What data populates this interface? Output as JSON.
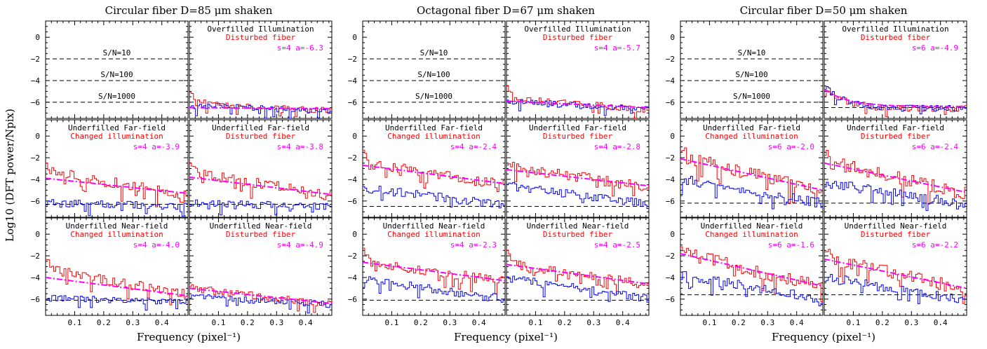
{
  "figure": {
    "ylabel": "Log10 (DFT power/Npix)",
    "xlabel": "Frequency (pixel⁻¹)",
    "colors": {
      "red": "#ff0000",
      "blue": "#0000ff",
      "fit": "#ff00ff",
      "ref": "#000000"
    }
  },
  "chart_data": [
    {
      "type": "line",
      "group_title": "Circular fiber D=85 μm shaken",
      "xlabel": "Frequency (pixel⁻¹)",
      "xlim": [
        0,
        0.49
      ],
      "ylim": [
        -7.5,
        1.5
      ],
      "xticks": [
        0.1,
        0.2,
        0.3,
        0.4
      ],
      "yticks": [
        0,
        -2,
        -4,
        -6
      ],
      "grid": false,
      "panels": [
        {
          "row": 0,
          "col": 0,
          "labels": [],
          "reference_lines": [
            {
              "y": -2,
              "label": "S/N=10"
            },
            {
              "y": -4,
              "label": "S/N=100"
            },
            {
              "y": -6,
              "label": "S/N=1000"
            }
          ]
        },
        {
          "row": 0,
          "col": 1,
          "labels": [
            "Overfilled Illumination",
            "Disturbed fiber"
          ],
          "fit": {
            "label": "s=4 a=-6.3",
            "y_start": -6.5,
            "y_end": -6.6
          },
          "series": [
            {
              "color": "red",
              "start": -6.0,
              "end": -6.8,
              "noise": 0.3
            },
            {
              "color": "blue",
              "start": -6.3,
              "end": -6.8,
              "noise": 0.3
            }
          ],
          "baseline": null
        },
        {
          "row": 1,
          "col": 0,
          "labels": [
            "Underfilled Far-field",
            "Changed illumination"
          ],
          "fit": {
            "label": "s=4 a=-3.9",
            "y_start": -3.9,
            "y_end": -5.3
          },
          "series": [
            {
              "color": "red",
              "start": -3.3,
              "end": -5.4,
              "noise": 0.5
            },
            {
              "color": "blue",
              "start": -6.2,
              "end": -6.5,
              "noise": 0.35
            }
          ],
          "baseline": -6.3
        },
        {
          "row": 1,
          "col": 1,
          "labels": [
            "Underfilled Far-field",
            "Disturbed fiber"
          ],
          "fit": {
            "label": "s=4 a=-3.8",
            "y_start": -3.8,
            "y_end": -5.4
          },
          "series": [
            {
              "color": "red",
              "start": -3.3,
              "end": -5.5,
              "noise": 0.5
            },
            {
              "color": "blue",
              "start": -6.2,
              "end": -6.5,
              "noise": 0.35
            }
          ],
          "baseline": -6.3
        },
        {
          "row": 2,
          "col": 0,
          "labels": [
            "Underfilled Near-field",
            "Changed illumination"
          ],
          "fit": {
            "label": "s=4 a=-4.0",
            "y_start": -4.0,
            "y_end": -5.7
          },
          "series": [
            {
              "color": "red",
              "start": -3.2,
              "end": -5.6,
              "noise": 0.45
            },
            {
              "color": "blue",
              "start": -5.9,
              "end": -6.3,
              "noise": 0.3
            }
          ],
          "baseline": -6.1
        },
        {
          "row": 2,
          "col": 1,
          "labels": [
            "Underfilled Near-field",
            "Disturbed fiber"
          ],
          "fit": {
            "label": "s=4 a=-4.9",
            "y_start": -5.0,
            "y_end": -6.4
          },
          "series": [
            {
              "color": "red",
              "start": -5.0,
              "end": -6.5,
              "noise": 0.35
            },
            {
              "color": "blue",
              "start": -5.8,
              "end": -6.5,
              "noise": 0.3
            }
          ],
          "baseline": null
        }
      ]
    },
    {
      "type": "line",
      "group_title": "Octagonal fiber D=67 μm shaken",
      "xlabel": "Frequency (pixel⁻¹)",
      "xlim": [
        0,
        0.49
      ],
      "ylim": [
        -7.5,
        1.5
      ],
      "xticks": [
        0.1,
        0.2,
        0.3,
        0.4
      ],
      "yticks": [
        0,
        -2,
        -4,
        -6
      ],
      "grid": false,
      "panels": [
        {
          "row": 0,
          "col": 0,
          "labels": [],
          "reference_lines": [
            {
              "y": -2,
              "label": "S/N=10"
            },
            {
              "y": -4,
              "label": "S/N=100"
            },
            {
              "y": -6,
              "label": "S/N=1000"
            }
          ]
        },
        {
          "row": 0,
          "col": 1,
          "labels": [
            "Overfilled Illumination",
            "Disturbed fiber"
          ],
          "fit": {
            "label": "s=4 a=-5.7",
            "y_start": -5.9,
            "y_end": -6.5
          },
          "series": [
            {
              "color": "red",
              "start": -5.6,
              "end": -6.7,
              "noise": 0.3
            },
            {
              "color": "blue",
              "start": -5.9,
              "end": -6.7,
              "noise": 0.3
            }
          ],
          "baseline": null
        },
        {
          "row": 1,
          "col": 0,
          "labels": [
            "Underfilled Far-field",
            "Changed illumination"
          ],
          "fit": {
            "label": "s=4 a=-2.4",
            "y_start": -2.7,
            "y_end": -4.4
          },
          "series": [
            {
              "color": "red",
              "start": -2.5,
              "end": -4.5,
              "noise": 0.5
            },
            {
              "color": "blue",
              "start": -4.8,
              "end": -6.4,
              "noise": 0.4
            }
          ],
          "baseline": -6.5
        },
        {
          "row": 1,
          "col": 1,
          "labels": [
            "Underfilled Far-field",
            "Disturbed fiber"
          ],
          "fit": {
            "label": "s=4 a=-2.8",
            "y_start": -3.1,
            "y_end": -4.6
          },
          "series": [
            {
              "color": "red",
              "start": -2.8,
              "end": -4.7,
              "noise": 0.5
            },
            {
              "color": "blue",
              "start": -4.6,
              "end": -6.3,
              "noise": 0.4
            }
          ],
          "baseline": -6.5
        },
        {
          "row": 2,
          "col": 0,
          "labels": [
            "Underfilled Near-field",
            "Changed illumination"
          ],
          "fit": {
            "label": "s=4 a=-2.3",
            "y_start": -2.6,
            "y_end": -4.3
          },
          "series": [
            {
              "color": "red",
              "start": -2.5,
              "end": -4.4,
              "noise": 0.45
            },
            {
              "color": "blue",
              "start": -4.2,
              "end": -6.0,
              "noise": 0.4
            }
          ],
          "baseline": -6.1
        },
        {
          "row": 2,
          "col": 1,
          "labels": [
            "Underfilled Near-field",
            "Disturbed fiber"
          ],
          "fit": {
            "label": "s=4 a=-2.5",
            "y_start": -2.8,
            "y_end": -4.6
          },
          "series": [
            {
              "color": "red",
              "start": -2.7,
              "end": -4.7,
              "noise": 0.45
            },
            {
              "color": "blue",
              "start": -4.1,
              "end": -5.9,
              "noise": 0.4
            }
          ],
          "baseline": -6.1
        }
      ]
    },
    {
      "type": "line",
      "group_title": "Circular fiber D=50 μm shaken",
      "xlabel": "Frequency (pixel⁻¹)",
      "xlim": [
        0,
        0.49
      ],
      "ylim": [
        -7.5,
        1.5
      ],
      "xticks": [
        0.1,
        0.2,
        0.3,
        0.4
      ],
      "yticks": [
        0,
        -2,
        -4,
        -6
      ],
      "grid": false,
      "panels": [
        {
          "row": 0,
          "col": 0,
          "labels": [],
          "reference_lines": [
            {
              "y": -2,
              "label": "S/N=10"
            },
            {
              "y": -4,
              "label": "S/N=100"
            },
            {
              "y": -6,
              "label": "S/N=1000"
            }
          ]
        },
        {
          "row": 0,
          "col": 1,
          "labels": [
            "Overfilled Illumination",
            "Disturbed fiber"
          ],
          "fit": {
            "label": "s=6 a=-4.9",
            "y_start": -4.8,
            "y_end": -6.4,
            "curved": true
          },
          "series": [
            {
              "color": "red",
              "start": -4.5,
              "end": -6.6,
              "noise": 0.3,
              "curved": true
            },
            {
              "color": "blue",
              "start": -4.6,
              "end": -6.6,
              "noise": 0.3,
              "curved": true
            }
          ],
          "baseline": -6.5
        },
        {
          "row": 1,
          "col": 0,
          "labels": [
            "Underfilled Far-field",
            "Changed illumination"
          ],
          "fit": {
            "label": "s=6 a=-2.0",
            "y_start": -2.1,
            "y_end": -5.0
          },
          "series": [
            {
              "color": "red",
              "start": -1.9,
              "end": -5.1,
              "noise": 0.6
            },
            {
              "color": "blue",
              "start": -4.0,
              "end": -6.2,
              "noise": 0.45
            }
          ],
          "baseline": -6.2
        },
        {
          "row": 1,
          "col": 1,
          "labels": [
            "Underfilled Far-field",
            "Disturbed fiber"
          ],
          "fit": {
            "label": "s=6 a=-2.4",
            "y_start": -2.5,
            "y_end": -5.2
          },
          "series": [
            {
              "color": "red",
              "start": -2.3,
              "end": -5.3,
              "noise": 0.6
            },
            {
              "color": "blue",
              "start": -4.3,
              "end": -6.3,
              "noise": 0.45
            }
          ],
          "baseline": -6.2
        },
        {
          "row": 2,
          "col": 0,
          "labels": [
            "Underfilled Near-field",
            "Changed illumination"
          ],
          "fit": {
            "label": "s=6 a=-1.6",
            "y_start": -1.8,
            "y_end": -4.8
          },
          "series": [
            {
              "color": "red",
              "start": -1.7,
              "end": -4.9,
              "noise": 0.6
            },
            {
              "color": "blue",
              "start": -3.8,
              "end": -6.0,
              "noise": 0.45
            }
          ],
          "baseline": -5.6
        },
        {
          "row": 2,
          "col": 1,
          "labels": [
            "Underfilled Near-field",
            "Disturbed fiber"
          ],
          "fit": {
            "label": "s=6 a=-2.2",
            "y_start": -2.3,
            "y_end": -5.0
          },
          "series": [
            {
              "color": "red",
              "start": -2.2,
              "end": -5.1,
              "noise": 0.6
            },
            {
              "color": "blue",
              "start": -4.0,
              "end": -6.1,
              "noise": 0.45
            }
          ],
          "baseline": -5.6
        }
      ]
    }
  ]
}
